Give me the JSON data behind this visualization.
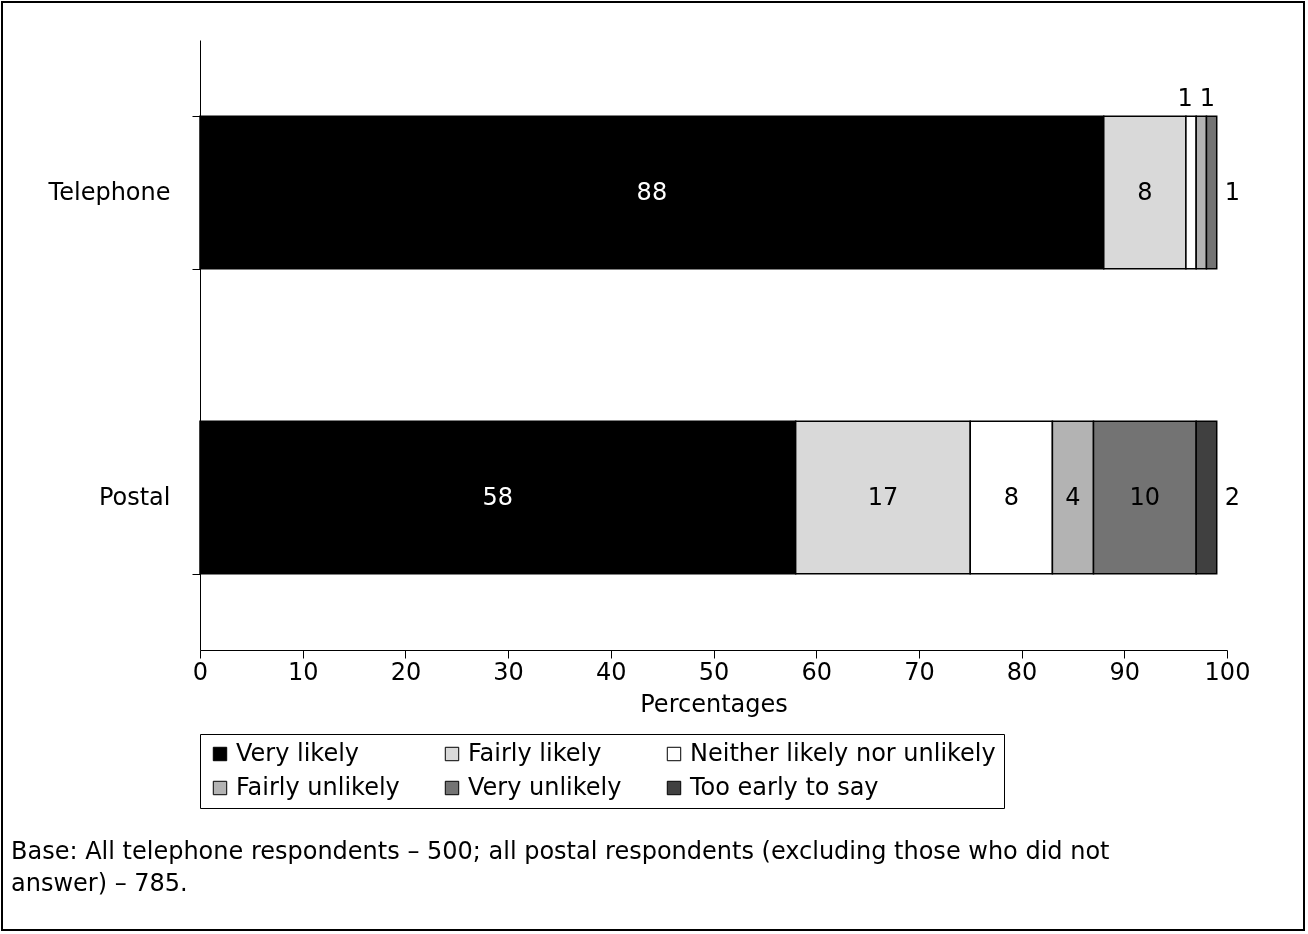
{
  "chart_data": {
    "type": "bar",
    "orientation": "horizontal",
    "stacked": true,
    "categories": [
      "Telephone",
      "Postal"
    ],
    "xlabel": "Percentages",
    "xlim": [
      0,
      100
    ],
    "xticks": [
      0,
      10,
      20,
      30,
      40,
      50,
      60,
      70,
      80,
      90,
      100
    ],
    "legend": "bottom",
    "data_labels": true,
    "grid": false,
    "series": [
      {
        "name": "Very likely",
        "color": "#000000",
        "values": [
          88,
          58
        ]
      },
      {
        "name": "Fairly likely",
        "color": "#d9d9d9",
        "values": [
          8,
          17
        ]
      },
      {
        "name": "Neither likely nor unlikely",
        "color": "#ffffff",
        "values": [
          1,
          8
        ]
      },
      {
        "name": "Fairly unlikely",
        "color": "#b3b3b3",
        "values": [
          1,
          4
        ]
      },
      {
        "name": "Very unlikely",
        "color": "#737373",
        "values": [
          1,
          10
        ]
      },
      {
        "name": "Too early to say",
        "color": "#404040",
        "values": [
          null,
          2
        ]
      }
    ],
    "annotations": [
      "Base: All telephone respondents – 500; all postal respondents (excluding those who did not answer) – 785."
    ]
  }
}
